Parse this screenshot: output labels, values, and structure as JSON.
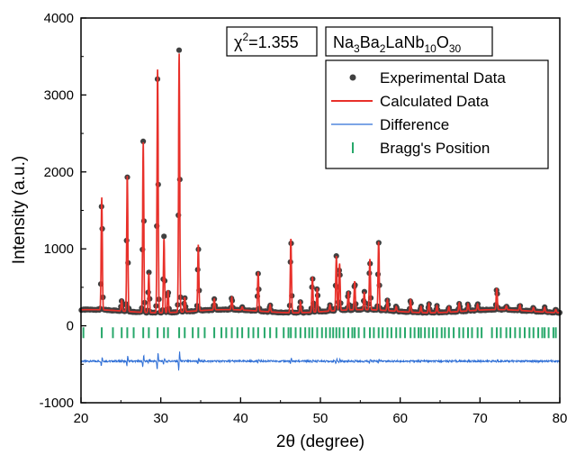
{
  "chart_data": {
    "type": "scatter",
    "xlabel": "2θ (degree)",
    "ylabel": "Intensity (a.u.)",
    "xlim": [
      20,
      80
    ],
    "ylim": [
      -1000,
      4000
    ],
    "xticks": [
      "20",
      "30",
      "40",
      "50",
      "60",
      "70",
      "80"
    ],
    "yticks": [
      "-1000",
      "0",
      "1000",
      "2000",
      "3000",
      "4000"
    ],
    "chi_label_symbol": "χ",
    "chi_label_sup": "2",
    "chi_label_value": "=1.355",
    "formula": {
      "parts": [
        {
          "text": "Na",
          "sub": false
        },
        {
          "text": "3",
          "sub": true
        },
        {
          "text": "Ba",
          "sub": false
        },
        {
          "text": "2",
          "sub": true
        },
        {
          "text": "LaNb",
          "sub": false
        },
        {
          "text": "10",
          "sub": true
        },
        {
          "text": "O",
          "sub": false
        },
        {
          "text": "30",
          "sub": true
        }
      ]
    },
    "legend_position": "top-right",
    "series": [
      {
        "name": "Experimental Data",
        "kind": "points",
        "color": "#404040"
      },
      {
        "name": "Calculated Data",
        "kind": "line",
        "color": "#e8302a"
      },
      {
        "name": "Difference",
        "kind": "line",
        "color": "#2f6fd6"
      },
      {
        "name": "Bragg's Position",
        "kind": "ticks",
        "color": "#27a86a"
      }
    ],
    "background": 190,
    "difference_offset": -460,
    "bragg_level": -90,
    "peaks": [
      {
        "x": 22.6,
        "y": 1650
      },
      {
        "x": 25.1,
        "y": 330
      },
      {
        "x": 25.8,
        "y": 1950
      },
      {
        "x": 27.8,
        "y": 2400
      },
      {
        "x": 28.5,
        "y": 700
      },
      {
        "x": 29.6,
        "y": 3350
      },
      {
        "x": 30.4,
        "y": 1150
      },
      {
        "x": 30.9,
        "y": 480
      },
      {
        "x": 32.3,
        "y": 3550
      },
      {
        "x": 33.0,
        "y": 380
      },
      {
        "x": 34.7,
        "y": 1050
      },
      {
        "x": 36.7,
        "y": 330
      },
      {
        "x": 38.9,
        "y": 350
      },
      {
        "x": 40.2,
        "y": 230
      },
      {
        "x": 42.2,
        "y": 700
      },
      {
        "x": 43.7,
        "y": 280
      },
      {
        "x": 46.3,
        "y": 1150
      },
      {
        "x": 47.5,
        "y": 330
      },
      {
        "x": 49.0,
        "y": 650
      },
      {
        "x": 49.6,
        "y": 500
      },
      {
        "x": 51.2,
        "y": 270
      },
      {
        "x": 52.0,
        "y": 900
      },
      {
        "x": 52.4,
        "y": 800
      },
      {
        "x": 53.5,
        "y": 430
      },
      {
        "x": 54.3,
        "y": 560
      },
      {
        "x": 55.5,
        "y": 420
      },
      {
        "x": 56.2,
        "y": 850
      },
      {
        "x": 57.3,
        "y": 1080
      },
      {
        "x": 58.4,
        "y": 330
      },
      {
        "x": 59.5,
        "y": 250
      },
      {
        "x": 61.3,
        "y": 350
      },
      {
        "x": 62.6,
        "y": 270
      },
      {
        "x": 63.6,
        "y": 310
      },
      {
        "x": 64.6,
        "y": 280
      },
      {
        "x": 66.1,
        "y": 260
      },
      {
        "x": 67.4,
        "y": 300
      },
      {
        "x": 68.5,
        "y": 280
      },
      {
        "x": 69.7,
        "y": 270
      },
      {
        "x": 72.1,
        "y": 470
      },
      {
        "x": 73.3,
        "y": 240
      },
      {
        "x": 75.0,
        "y": 260
      },
      {
        "x": 76.7,
        "y": 240
      },
      {
        "x": 78.1,
        "y": 250
      },
      {
        "x": 79.5,
        "y": 230
      }
    ],
    "bragg_positions": [
      20.3,
      22.6,
      24.0,
      25.1,
      25.8,
      26.6,
      27.8,
      28.5,
      29.6,
      30.4,
      30.9,
      32.3,
      33.0,
      34.0,
      34.7,
      35.5,
      36.7,
      37.6,
      38.2,
      38.9,
      39.6,
      40.2,
      41.0,
      41.6,
      42.2,
      43.0,
      43.7,
      44.5,
      45.4,
      46.0,
      46.3,
      46.9,
      47.5,
      48.1,
      48.6,
      49.0,
      49.6,
      50.2,
      50.7,
      51.2,
      51.6,
      52.0,
      52.4,
      52.9,
      53.5,
      54.0,
      54.3,
      54.8,
      55.5,
      56.2,
      56.7,
      57.3,
      57.8,
      58.4,
      58.9,
      59.5,
      60.0,
      60.6,
      61.3,
      61.8,
      62.3,
      62.6,
      63.1,
      63.6,
      64.1,
      64.6,
      65.2,
      65.6,
      66.1,
      66.7,
      67.4,
      67.9,
      68.5,
      69.0,
      69.7,
      70.2,
      71.5,
      72.1,
      72.6,
      73.3,
      73.8,
      74.4,
      75.0,
      75.6,
      76.2,
      76.7,
      77.3,
      77.8,
      78.1,
      78.6,
      79.2,
      79.5
    ]
  }
}
